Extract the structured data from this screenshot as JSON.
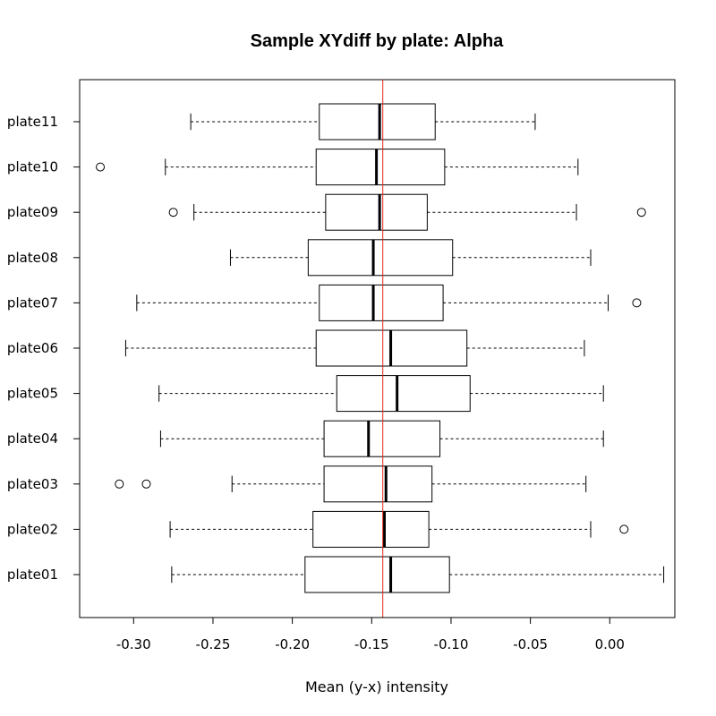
{
  "chart_data": {
    "type": "boxplot",
    "orientation": "horizontal",
    "title": "Sample XYdiff by plate:  Alpha",
    "xlabel": "Mean (y-x) intensity",
    "ylabel": "",
    "xlim": [
      -0.334,
      0.041
    ],
    "x_ticks": [
      -0.3,
      -0.25,
      -0.2,
      -0.15,
      -0.1,
      -0.05,
      0.0
    ],
    "x_tick_labels": [
      "-0.30",
      "-0.25",
      "-0.20",
      "-0.15",
      "-0.10",
      "-0.05",
      "0.00"
    ],
    "reference_line": {
      "value": -0.143,
      "color": "#e0281e"
    },
    "grid": false,
    "categories": [
      "plate01",
      "plate02",
      "plate03",
      "plate04",
      "plate05",
      "plate06",
      "plate07",
      "plate08",
      "plate09",
      "plate10",
      "plate11"
    ],
    "boxes": [
      {
        "name": "plate01",
        "whisker_low": -0.276,
        "q1": -0.192,
        "median": -0.138,
        "q3": -0.101,
        "whisker_high": 0.034,
        "outliers": []
      },
      {
        "name": "plate02",
        "whisker_low": -0.277,
        "q1": -0.187,
        "median": -0.142,
        "q3": -0.114,
        "whisker_high": -0.012,
        "outliers": [
          0.009
        ]
      },
      {
        "name": "plate03",
        "whisker_low": -0.238,
        "q1": -0.18,
        "median": -0.141,
        "q3": -0.112,
        "whisker_high": -0.015,
        "outliers": [
          -0.309,
          -0.292
        ]
      },
      {
        "name": "plate04",
        "whisker_low": -0.283,
        "q1": -0.18,
        "median": -0.152,
        "q3": -0.107,
        "whisker_high": -0.004,
        "outliers": []
      },
      {
        "name": "plate05",
        "whisker_low": -0.284,
        "q1": -0.172,
        "median": -0.134,
        "q3": -0.088,
        "whisker_high": -0.004,
        "outliers": []
      },
      {
        "name": "plate06",
        "whisker_low": -0.305,
        "q1": -0.185,
        "median": -0.138,
        "q3": -0.09,
        "whisker_high": -0.016,
        "outliers": []
      },
      {
        "name": "plate07",
        "whisker_low": -0.298,
        "q1": -0.183,
        "median": -0.149,
        "q3": -0.105,
        "whisker_high": -0.001,
        "outliers": [
          0.017
        ]
      },
      {
        "name": "plate08",
        "whisker_low": -0.239,
        "q1": -0.19,
        "median": -0.149,
        "q3": -0.099,
        "whisker_high": -0.012,
        "outliers": []
      },
      {
        "name": "plate09",
        "whisker_low": -0.262,
        "q1": -0.179,
        "median": -0.145,
        "q3": -0.115,
        "whisker_high": -0.021,
        "outliers": [
          -0.275,
          0.02
        ]
      },
      {
        "name": "plate10",
        "whisker_low": -0.28,
        "q1": -0.185,
        "median": -0.147,
        "q3": -0.104,
        "whisker_high": -0.02,
        "outliers": [
          -0.321
        ]
      },
      {
        "name": "plate11",
        "whisker_low": -0.264,
        "q1": -0.183,
        "median": -0.145,
        "q3": -0.11,
        "whisker_high": -0.047,
        "outliers": []
      }
    ]
  }
}
